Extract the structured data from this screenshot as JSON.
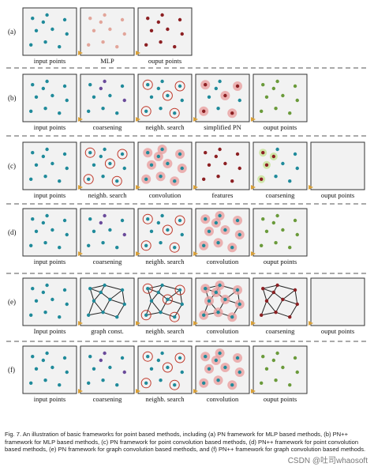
{
  "rows": [
    {
      "letter": "(a)",
      "labels": [
        "input points",
        "MLP",
        "ouput points"
      ]
    },
    {
      "letter": "(b)",
      "labels": [
        "input points",
        "coarsening",
        "neighb. search",
        "simplified PN",
        "ouput points"
      ]
    },
    {
      "letter": "(c)",
      "labels": [
        "input points",
        "neighb. search",
        "convolution",
        "features",
        "coarsening",
        "ouput points"
      ]
    },
    {
      "letter": "(d)",
      "labels": [
        "input points",
        "coarsening",
        "neighb. search",
        "convolution",
        "ouput points"
      ]
    },
    {
      "letter": "(e)",
      "labels": [
        "Input points",
        "graph const.",
        "neighb. search",
        "convolution",
        "coarsening",
        "ouput points"
      ]
    },
    {
      "letter": "(f)",
      "labels": [
        "input points",
        "coarsening",
        "neighb. search",
        "convolution",
        "ouput points"
      ]
    }
  ],
  "caption": "Fig. 7.  An illustration of basic frameworks for point based methods, including (a) PN framework for MLP based methods, (b) PN++ framework for MLP based methods, (c) PN framework for point convolution based methods, (d) PN++ framework for point convolution based methods, (e) PN framework for graph convolution based methods, and (f) PN++ framework for graph convolution based methods.",
  "watermark": "CSDN @吐司whaosoft",
  "colors": {
    "teal": "#1f8a9a",
    "purple": "#6a4a9a",
    "pink": "#e2a59a",
    "darkred": "#8c1f22",
    "green": "#6a9a3a",
    "halo": "#e9a0a0",
    "ring": "#c0392b",
    "arrow": "#d9a13a",
    "panel_bg": "#f2f2f2",
    "dash": "#555555"
  }
}
